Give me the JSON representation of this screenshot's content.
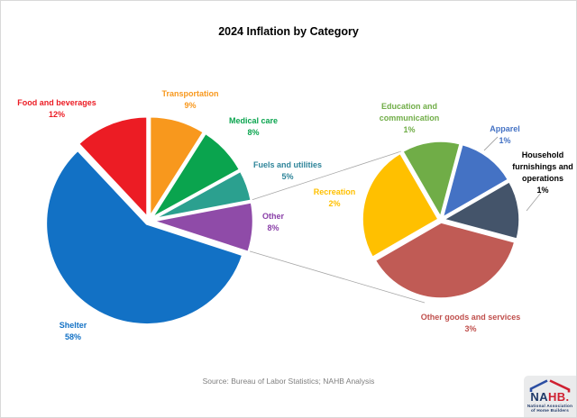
{
  "title": "2024 Inflation by Category",
  "source_note": "Source: Bureau of Labor Statistics; NAHB Analysis",
  "logo": {
    "name": "NAHB",
    "text_primary": "NA",
    "text_secondary": "HB.",
    "tagline_line1": "National Association",
    "tagline_line2": "of Home Builders",
    "color_navy": "#1E3867",
    "color_blue": "#2B4EA2",
    "color_red": "#CF2031"
  },
  "chart_data": {
    "type": "pie",
    "subtype": "pie-of-pie",
    "title": "2024 Inflation by Category",
    "unit": "%",
    "legend_position": "none",
    "main_pie": {
      "start_angle_deg": 0,
      "slices": [
        {
          "label": "Transportation",
          "value": 9,
          "color": "#F8981D",
          "label_color": "#F8981D"
        },
        {
          "label": "Medical care",
          "value": 8,
          "color": "#0AA44E",
          "label_color": "#0AA44E"
        },
        {
          "label": "Fuels and utilities",
          "value": 5,
          "color": "#2BA08F",
          "label_color": "#2E8499"
        },
        {
          "label": "Other",
          "value": 8,
          "color": "#8F4BA8",
          "label_color": "#8A3FA8"
        },
        {
          "label": "Shelter",
          "value": 58,
          "color": "#1271C5",
          "label_color": "#1271C5"
        },
        {
          "label": "Food and beverages",
          "value": 12,
          "color": "#EC1C24",
          "label_color": "#EC1C24"
        }
      ]
    },
    "secondary_pie": {
      "expanded_from": "Other",
      "start_angle_deg": 240,
      "slices": [
        {
          "label": "Recreation",
          "value": 2,
          "color": "#FFC000",
          "label_color": "#FFC000"
        },
        {
          "label": "Education and communication",
          "value": 1,
          "color": "#70AD47",
          "label_color": "#70AD47"
        },
        {
          "label": "Apparel",
          "value": 1,
          "color": "#4472C4",
          "label_color": "#4472C4"
        },
        {
          "label": "Household furnishings and operations",
          "value": 1,
          "color": "#44546A",
          "label_color": "#000000"
        },
        {
          "label": "Other goods and services",
          "value": 3,
          "color": "#C05B55",
          "label_color": "#C0504D"
        }
      ]
    }
  }
}
